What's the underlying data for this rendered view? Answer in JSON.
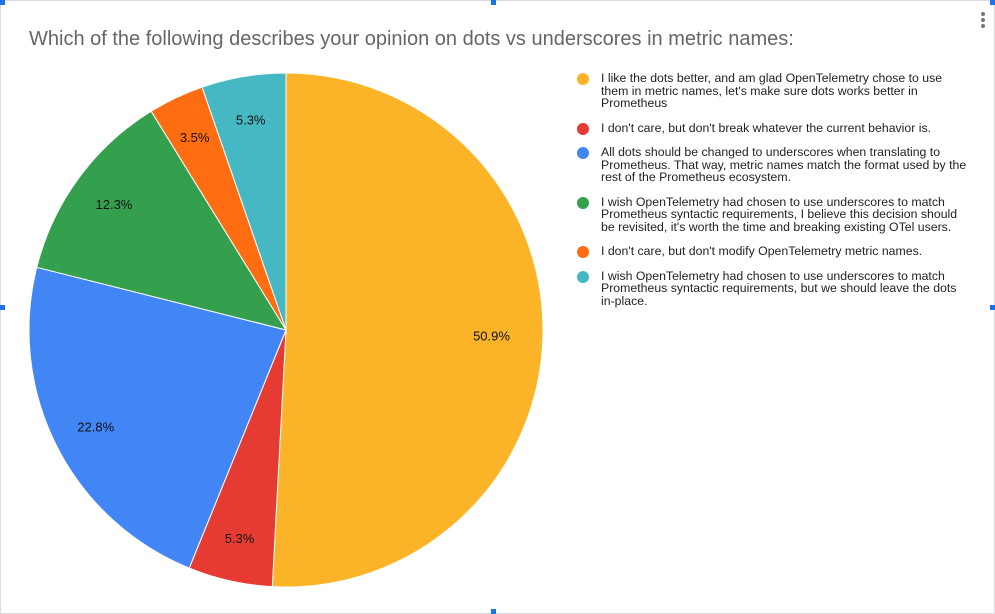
{
  "chart_data": {
    "type": "pie",
    "title": "Which of the following describes your opinion on dots vs underscores in metric names:",
    "legend_position": "right",
    "slices": [
      {
        "label": "I like the dots better, and am glad OpenTelemetry chose to use them in metric names, let's make sure dots works better in Prometheus",
        "value": 50.9,
        "data_label": "50.9%",
        "color": "#fbb427"
      },
      {
        "label": "I don't care, but don't break whatever the current behavior is.",
        "value": 5.3,
        "data_label": "5.3%",
        "color": "#e53b32"
      },
      {
        "label": "All dots should be changed to underscores when translating to Prometheus. That way, metric names match the format used by the rest of the Prometheus ecosystem.",
        "value": 22.8,
        "data_label": "22.8%",
        "color": "#4285f4"
      },
      {
        "label": "I wish OpenTelemetry had chosen to use underscores to match Prometheus syntactic requirements, I believe this decision should be revisited, it's worth the time and breaking existing OTel users.",
        "value": 12.3,
        "data_label": "12.3%",
        "color": "#34a04e"
      },
      {
        "label": "I don't care, but don't modify OpenTelemetry metric names.",
        "value": 3.5,
        "data_label": "3.5%",
        "color": "#ff6d12"
      },
      {
        "label": "I wish OpenTelemetry had chosen to use underscores to match Prometheus syntactic requirements, but we should leave the dots in-place.",
        "value": 5.3,
        "data_label": "5.3%",
        "color": "#46b8c3"
      }
    ]
  },
  "menu_icon": "more-vert-icon",
  "selection_color": "#1a73e8"
}
